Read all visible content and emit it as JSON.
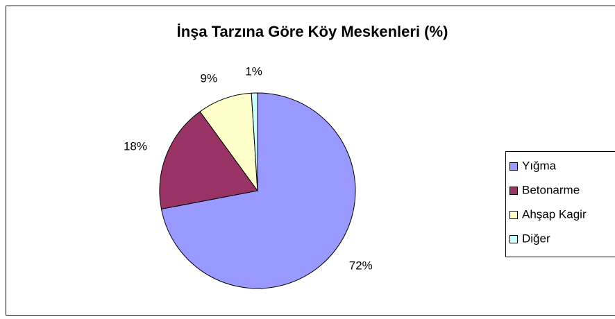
{
  "chart_data": {
    "type": "pie",
    "title": "İnşa Tarzına Göre Köy Meskenleri (%)",
    "categories": [
      "Yığma",
      "Betonarme",
      "Ahşap Kagir",
      "Diğer"
    ],
    "values": [
      72,
      18,
      9,
      1
    ],
    "value_labels": [
      "72%",
      "18%",
      "9%",
      "1%"
    ],
    "colors": [
      "#9999ff",
      "#993366",
      "#ffffcc",
      "#ccffff"
    ]
  }
}
